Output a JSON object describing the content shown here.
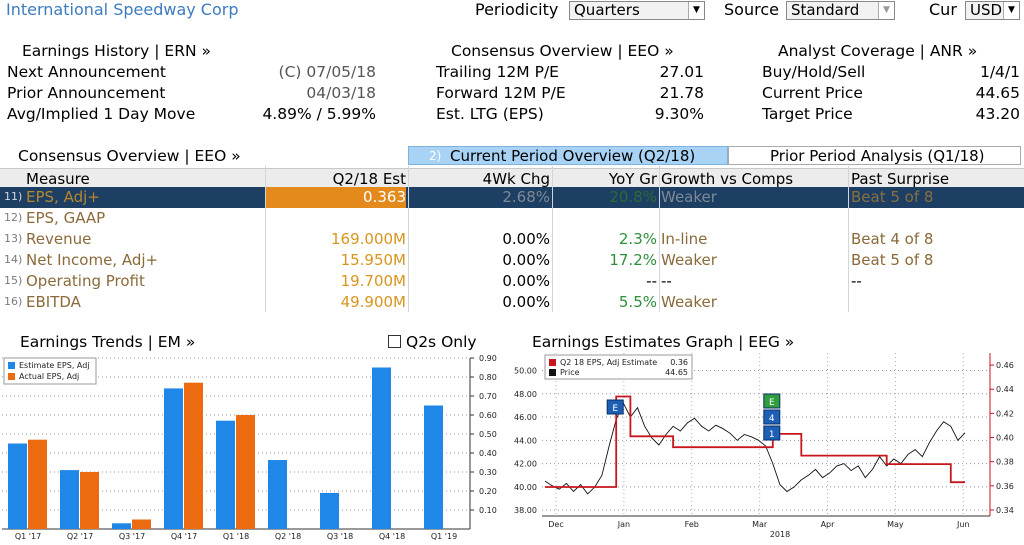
{
  "top": {
    "company": "International Speedway Corp",
    "periodicity_label": "Periodicity",
    "periodicity_value": "Quarters",
    "source_label": "Source",
    "source_value": "Standard",
    "cur_label": "Cur",
    "cur_value": "USD"
  },
  "earnings_history": {
    "title": "Earnings History | ERN »",
    "rows": [
      {
        "label": "Next Announcement",
        "value": "(C)  07/05/18"
      },
      {
        "label": "Prior Announcement",
        "value": "04/03/18"
      },
      {
        "label": "Avg/Implied 1 Day Move",
        "value": "4.89% / 5.99%"
      }
    ]
  },
  "consensus_overview_top": {
    "title": "Consensus Overview | EEO »",
    "rows": [
      {
        "label": "Trailing 12M P/E",
        "value": "27.01"
      },
      {
        "label": "Forward 12M P/E",
        "value": "21.78"
      },
      {
        "label": "Est. LTG (EPS)",
        "value": "9.30%"
      }
    ]
  },
  "analyst_coverage": {
    "title": "Analyst Coverage | ANR »",
    "rows": [
      {
        "label": "Buy/Hold/Sell",
        "value": "1/4/1"
      },
      {
        "label": "Current Price",
        "value": "44.65"
      },
      {
        "label": "Target Price",
        "value": "43.20"
      }
    ]
  },
  "consensus_table": {
    "title": "Consensus Overview | EEO »",
    "tab_current_num": "2)",
    "tab_current": "Current Period Overview (Q2/18)",
    "tab_prior": "Prior Period Analysis (Q1/18)",
    "headers": [
      "Measure",
      "Q2/18 Est",
      "4Wk Chg",
      "YoY Gr",
      "Growth vs Comps",
      "Past Surprise"
    ],
    "rows": [
      {
        "num": "11)",
        "measure": "EPS, Adj+",
        "est": "0.363",
        "chg": "2.68%",
        "yoy": "20.8%",
        "comps": "Weaker",
        "surprise": "Beat 5 of 8"
      },
      {
        "num": "12)",
        "measure": "EPS, GAAP",
        "est": "",
        "chg": "",
        "yoy": "",
        "comps": "",
        "surprise": ""
      },
      {
        "num": "13)",
        "measure": "Revenue",
        "est": "169.000M",
        "chg": "0.00%",
        "yoy": "2.3%",
        "comps": "In-line",
        "surprise": "Beat 4 of 8"
      },
      {
        "num": "14)",
        "measure": "Net Income, Adj+",
        "est": "15.950M",
        "chg": "0.00%",
        "yoy": "17.2%",
        "comps": "Weaker",
        "surprise": "Beat 5 of 8"
      },
      {
        "num": "15)",
        "measure": "Operating Profit",
        "est": "19.700M",
        "chg": "0.00%",
        "yoy": "--",
        "comps": "--",
        "surprise": "--"
      },
      {
        "num": "16)",
        "measure": "EBITDA",
        "est": "49.900M",
        "chg": "0.00%",
        "yoy": "5.5%",
        "comps": "Weaker",
        "surprise": ""
      }
    ]
  },
  "earnings_trends": {
    "title": "Earnings Trends | EM »",
    "q2s_only": "Q2s Only"
  },
  "earnings_graph": {
    "title": "Earnings Estimates Graph | EEG »"
  },
  "colors": {
    "estimate": "#1f87e8",
    "actual": "#ec6a10",
    "price_line": "#111111",
    "estimate_line": "#c8161d",
    "orange_text": "#d8951d",
    "green_text": "#2f8f3b",
    "tab_active": "#a9d3f5",
    "highlight_row": "#1f4e79"
  },
  "chart_data": [
    {
      "type": "bar",
      "categories": [
        "Q1 '17",
        "Q2 '17",
        "Q3 '17",
        "Q4 '17",
        "Q1 '18",
        "Q2 '18",
        "Q3 '18",
        "Q4 '18",
        "Q1 '19"
      ],
      "series": [
        {
          "name": "Estimate EPS, Adj",
          "values": [
            0.45,
            0.31,
            0.03,
            0.74,
            0.57,
            0.363,
            0.19,
            0.85,
            0.65
          ]
        },
        {
          "name": "Actual EPS, Adj",
          "values": [
            0.47,
            0.3,
            0.05,
            0.77,
            0.6,
            null,
            null,
            null,
            null
          ]
        }
      ],
      "ylim": [
        0,
        0.9
      ],
      "yticks": [
        "0.10",
        "0.20",
        "0.30",
        "0.40",
        "0.50",
        "0.60",
        "0.70",
        "0.80",
        "0.90"
      ],
      "legend": "top-left"
    },
    {
      "type": "line",
      "legend_entries": [
        {
          "name": "Q2 18 EPS, Adj Estimate",
          "value": "0.36"
        },
        {
          "name": "Price",
          "value": "44.65"
        }
      ],
      "x_labels": [
        "Dec",
        "Jan",
        "Feb",
        "Mar",
        "Apr",
        "May",
        "Jun"
      ],
      "x_year_label": "2018",
      "left_yticks": [
        "38.00",
        "40.00",
        "42.00",
        "44.00",
        "46.00",
        "48.00",
        "50.00"
      ],
      "right_yticks": [
        "0.34",
        "0.36",
        "0.38",
        "0.40",
        "0.42",
        "0.44",
        "0.46"
      ],
      "left_ylim": [
        37.5,
        51.5
      ],
      "right_ylim": [
        0.335,
        0.47
      ],
      "markers": [
        "E",
        "E",
        "4",
        "1"
      ],
      "series": [
        {
          "name": "Price",
          "axis": "left",
          "values": [
            40.5,
            40.1,
            39.8,
            40.3,
            39.6,
            40.2,
            39.4,
            40.0,
            41.0,
            43.5,
            45.8,
            47.2,
            46.0,
            46.8,
            45.2,
            44.2,
            43.6,
            44.5,
            45.2,
            44.8,
            45.5,
            45.9,
            45.2,
            44.8,
            45.3,
            45.0,
            44.6,
            44.0,
            44.5,
            44.3,
            44.0,
            43.5,
            42.0,
            40.2,
            39.6,
            40.0,
            40.6,
            41.0,
            41.5,
            40.8,
            41.2,
            41.8,
            42.0,
            41.4,
            41.8,
            40.8,
            41.5,
            42.6,
            41.8,
            42.4,
            42.0,
            42.8,
            43.2,
            42.6,
            43.8,
            44.8,
            45.6,
            45.2,
            44.0,
            44.65
          ]
        },
        {
          "name": "Q2 18 EPS, Adj Estimate",
          "axis": "right",
          "values": [
            0.359,
            0.359,
            0.359,
            0.359,
            0.359,
            0.359,
            0.359,
            0.359,
            0.359,
            0.359,
            0.434,
            0.434,
            0.401,
            0.401,
            0.401,
            0.401,
            0.401,
            0.401,
            0.392,
            0.392,
            0.392,
            0.392,
            0.392,
            0.392,
            0.392,
            0.392,
            0.392,
            0.392,
            0.392,
            0.392,
            0.392,
            0.392,
            0.403,
            0.403,
            0.403,
            0.403,
            0.385,
            0.385,
            0.385,
            0.385,
            0.385,
            0.385,
            0.385,
            0.385,
            0.385,
            0.385,
            0.385,
            0.385,
            0.378,
            0.378,
            0.378,
            0.378,
            0.378,
            0.378,
            0.378,
            0.378,
            0.378,
            0.363,
            0.363,
            0.363
          ]
        }
      ]
    }
  ]
}
